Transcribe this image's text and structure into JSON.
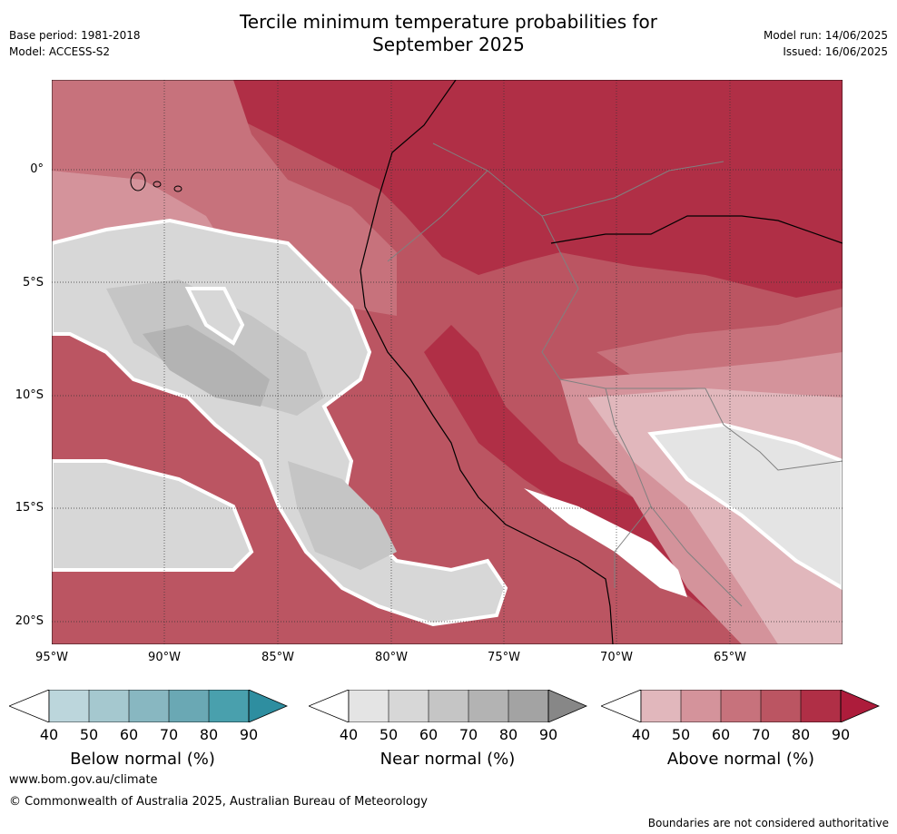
{
  "title": "Tercile minimum temperature probabilities for\nSeptember 2025",
  "meta_left": {
    "base_period": "Base period: 1981-2018",
    "model": "Model: ACCESS-S2"
  },
  "meta_right": {
    "model_run": "Model run: 14/06/2025",
    "issued": "Issued: 16/06/2025"
  },
  "map": {
    "lat_labels": [
      "0°",
      "5°S",
      "10°S",
      "15°S",
      "20°S"
    ],
    "lon_labels": [
      "95°W",
      "90°W",
      "85°W",
      "80°W",
      "75°W",
      "70°W",
      "65°W"
    ],
    "colors": {
      "above": [
        "#e1b7bc",
        "#d4939b",
        "#c7727c",
        "#bb5562",
        "#b02f46",
        "#ad1c3b"
      ],
      "near": [
        "#e4e4e4",
        "#d7d7d7",
        "#c5c5c5",
        "#b3b3b3",
        "#a3a3a3",
        "#878787"
      ],
      "below": [
        "#bcd6dc",
        "#a5c8cf",
        "#88b7c1",
        "#6aa8b4",
        "#49a0ad",
        "#2e8ea0"
      ]
    }
  },
  "colorbars": [
    {
      "label": "Below normal (%)",
      "ticks": [
        "40",
        "50",
        "60",
        "70",
        "80",
        "90"
      ]
    },
    {
      "label": "Near normal (%)",
      "ticks": [
        "40",
        "50",
        "60",
        "70",
        "80",
        "90"
      ]
    },
    {
      "label": "Above normal (%)",
      "ticks": [
        "40",
        "50",
        "60",
        "70",
        "80",
        "90"
      ]
    }
  ],
  "footer": {
    "url": "www.bom.gov.au/climate",
    "copyright": "© Commonwealth of Australia 2025, Australian Bureau of Meteorology",
    "note": "Boundaries are not considered authoritative"
  }
}
